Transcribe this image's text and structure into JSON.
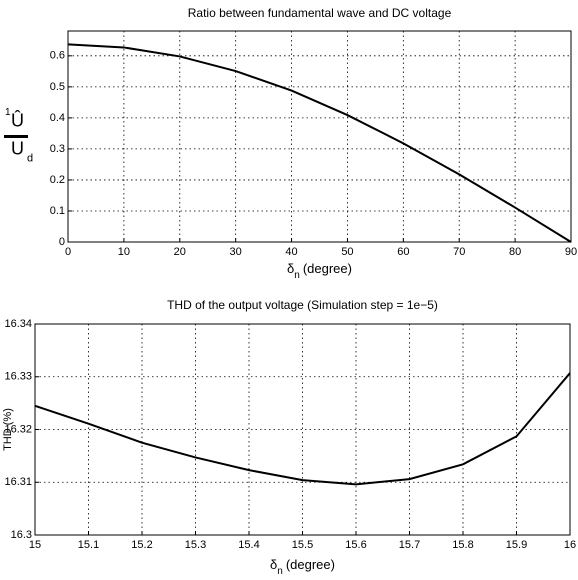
{
  "chart_data": [
    {
      "type": "line",
      "title": "Ratio between fundamental wave and DC voltage",
      "x_label": {
        "symbol": "δ",
        "subscript": "n",
        "text": "(degree)"
      },
      "y_label": {
        "superscript": "1",
        "numerator": "Û",
        "denominator": "U",
        "subscript": "d"
      },
      "x": [
        0,
        10,
        20,
        30,
        40,
        50,
        60,
        70,
        80,
        90
      ],
      "series": [
        {
          "color": "#000000",
          "values": [
            0.637,
            0.627,
            0.598,
            0.551,
            0.488,
            0.409,
            0.318,
            0.218,
            0.111,
            0
          ]
        }
      ],
      "xlim": [
        0,
        90
      ],
      "xticks": [
        0,
        10,
        20,
        30,
        40,
        50,
        60,
        70,
        80,
        90
      ],
      "ylim": [
        0,
        0.68
      ],
      "yticks": [
        0,
        0.1,
        0.2,
        0.3,
        0.4,
        0.5,
        0.6
      ],
      "grid": true
    },
    {
      "type": "line",
      "title": "THD of the output voltage (Simulation  step = 1e−5)",
      "x_label": {
        "symbol": "δ",
        "subscript": "n",
        "text": "(degree)"
      },
      "y_label": "THD (%)",
      "x": [
        15,
        15.1,
        15.2,
        15.3,
        15.4,
        15.5,
        15.6,
        15.7,
        15.8,
        15.9,
        16
      ],
      "series": [
        {
          "color": "#000000",
          "values": [
            16.3245,
            16.3211,
            16.3175,
            16.3147,
            16.3123,
            16.3104,
            16.3096,
            16.3106,
            16.3134,
            16.3187,
            16.3307
          ]
        }
      ],
      "xlim": [
        15,
        16
      ],
      "xticks": [
        15,
        15.1,
        15.2,
        15.3,
        15.4,
        15.5,
        15.6,
        15.7,
        15.8,
        15.9,
        16
      ],
      "ylim": [
        16.3,
        16.34
      ],
      "yticks": [
        16.3,
        16.31,
        16.32,
        16.33,
        16.34
      ],
      "grid": true
    }
  ]
}
